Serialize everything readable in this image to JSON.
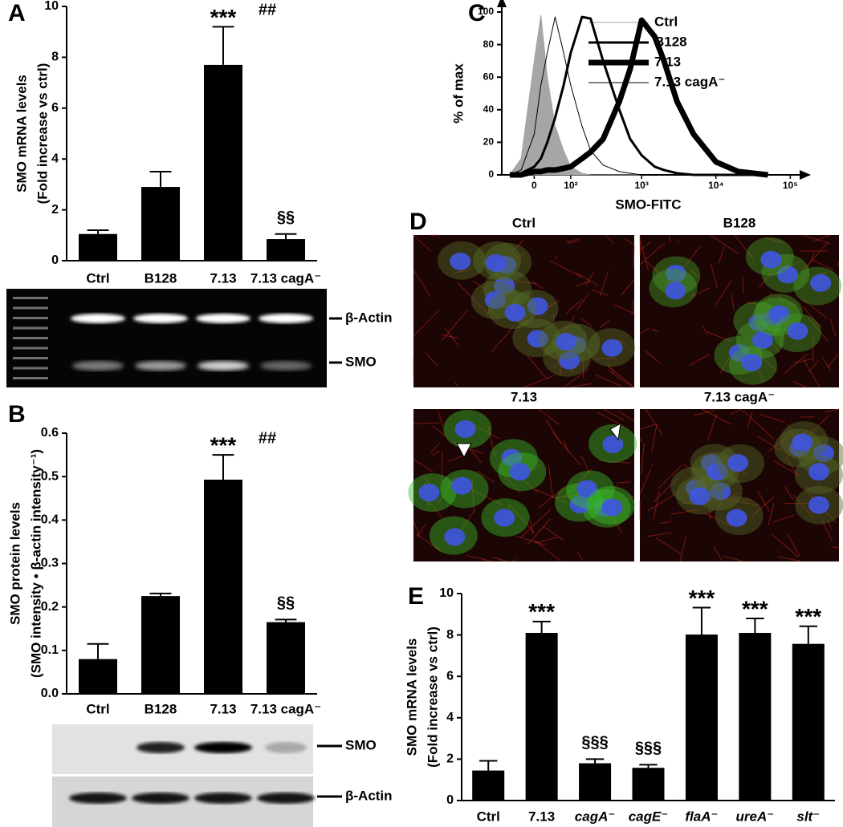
{
  "chart_data": [
    {
      "type": "bar",
      "panel": "A",
      "ylabel": [
        "SMO mRNA levels",
        "(Fold increase vs ctrl)"
      ],
      "categories": [
        "Ctrl",
        "B128",
        "7.13",
        "7.13 cagA⁻"
      ],
      "values": [
        1.05,
        2.9,
        7.7,
        0.85
      ],
      "errors": [
        0.15,
        0.6,
        1.5,
        0.2
      ],
      "annotations": [
        null,
        null,
        [
          "***",
          "##"
        ],
        [
          "§§"
        ]
      ],
      "color": "#000000",
      "ylim": [
        0,
        10
      ],
      "yticks": [
        0,
        2,
        4,
        6,
        8,
        10
      ]
    },
    {
      "type": "bar",
      "panel": "B",
      "ylabel": [
        "SMO protein levels",
        "(SMO intensity • β-actin intensity⁻¹)"
      ],
      "categories": [
        "Ctrl",
        "B128",
        "7.13",
        "7.13 cagA⁻"
      ],
      "values": [
        0.08,
        0.225,
        0.493,
        0.165
      ],
      "errors": [
        0.035,
        0.006,
        0.057,
        0.006
      ],
      "annotations": [
        null,
        null,
        [
          "***",
          "##"
        ],
        [
          "§§"
        ]
      ],
      "color": "#000000",
      "ylim": [
        0,
        0.6
      ],
      "yticks": [
        {
          "value": 0,
          "label": "0.0"
        },
        0.1,
        0.2,
        0.3,
        0.4,
        0.5,
        0.6
      ]
    },
    {
      "type": "line",
      "panel": "C",
      "ylabel": "% of max",
      "xlabel": "SMO-FITC",
      "xscale": "asinh",
      "x": [
        -60,
        -30,
        0,
        15,
        30,
        50,
        75,
        100,
        150,
        200,
        300,
        500,
        700,
        1000,
        1500,
        2000,
        3000,
        5000,
        10000,
        20000,
        50000
      ],
      "series": [
        {
          "name": "Ctrl",
          "color": "#a6a6a6",
          "line_width": 1,
          "style": "area",
          "values": [
            0,
            10,
            70,
            98,
            60,
            30,
            15,
            5,
            1,
            0,
            0,
            0,
            0,
            0,
            0,
            0,
            0,
            0,
            0,
            0,
            0
          ]
        },
        {
          "name": "B128",
          "color": "#000000",
          "line_width": 3,
          "values": [
            0,
            1,
            5,
            10,
            20,
            35,
            55,
            75,
            97,
            96,
            70,
            40,
            22,
            12,
            5,
            3,
            1,
            0,
            0,
            0,
            0
          ]
        },
        {
          "name": "7.13",
          "color": "#000000",
          "line_width": 7,
          "values": [
            0,
            0,
            2,
            2,
            3,
            3,
            4,
            5,
            10,
            14,
            22,
            45,
            65,
            95,
            85,
            70,
            45,
            25,
            8,
            2,
            0
          ]
        },
        {
          "name": "7.13 cagA⁻",
          "color": "#000000",
          "line_width": 1,
          "values": [
            0,
            3,
            25,
            55,
            75,
            97,
            75,
            55,
            30,
            15,
            6,
            2,
            1,
            0,
            0,
            0,
            0,
            0,
            0,
            0,
            0
          ]
        }
      ],
      "xlim": [
        -85,
        115000
      ],
      "xticks": [
        0,
        {
          "value": 100,
          "label": "10²"
        },
        {
          "value": 1000,
          "label": "10³"
        },
        {
          "value": 10000,
          "label": "10⁴"
        },
        {
          "value": 100000,
          "label": "10⁵"
        }
      ],
      "ylim": [
        0,
        100
      ],
      "yticks": [
        0,
        20,
        40,
        60,
        80,
        100
      ]
    },
    {
      "type": "bar",
      "panel": "E",
      "ylabel": [
        "SMO mRNA levels",
        "(Fold increase vs ctrl)"
      ],
      "categories": [
        "Ctrl",
        "7.13",
        "cagA⁻",
        "cagE⁻",
        "flaA⁻",
        "ureA⁻",
        "slt⁻"
      ],
      "values": [
        1.45,
        8.1,
        1.8,
        1.58,
        8.02,
        8.1,
        7.57
      ],
      "errors": [
        0.47,
        0.55,
        0.2,
        0.15,
        1.3,
        0.7,
        0.85
      ],
      "annotations": [
        null,
        [
          "***"
        ],
        [
          "§§§"
        ],
        [
          "§§§"
        ],
        [
          "***"
        ],
        [
          "***"
        ],
        [
          "***"
        ]
      ],
      "color": "#000000",
      "ylim": [
        0,
        10
      ],
      "yticks": [
        0,
        2,
        4,
        6,
        8,
        10
      ]
    }
  ],
  "gel_a": {
    "bands": [
      "β-Actin",
      "SMO"
    ]
  },
  "blot_b": {
    "bands": [
      "SMO",
      "β-Actin"
    ]
  },
  "figure_d": {
    "panel": "D",
    "labels": [
      "Ctrl",
      "B128",
      "7.13",
      "7.13 cagA⁻"
    ]
  }
}
